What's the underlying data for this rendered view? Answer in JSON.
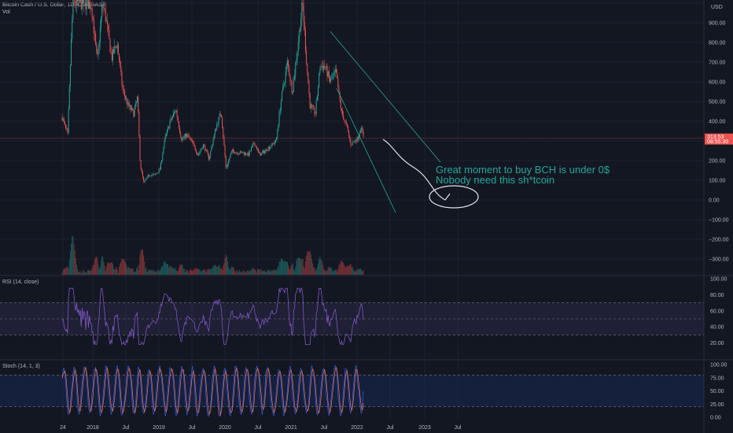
{
  "header": {
    "symbol": "Bitcoin Cash / U.S. Dollar, 1D, COINBASE",
    "volume_label": "Vol",
    "rsi_label": "RSI (14, close)",
    "stoch_label": "Stoch (14, 1, 3)",
    "usd_label": "USD"
  },
  "colors": {
    "background": "#131722",
    "up": "#26a69a",
    "down": "#ef5350",
    "rsi_line": "#7e57c2",
    "stoch_k": "#2962ff",
    "stoch_d": "#ff7043",
    "annotation": "#26a69a"
  },
  "chart_data": [
    {
      "type": "candlestick",
      "panel": "price",
      "x_ticks": [
        "24",
        "2018",
        "Jul",
        "2019",
        "Jul",
        "2020",
        "Jul",
        "2021",
        "Jul",
        "2022",
        "Jul",
        "2023",
        "Jul"
      ],
      "y_ticks": [
        "1000.00",
        "900.00",
        "800.00",
        "700.00",
        "600.00",
        "500.00",
        "400.00",
        "300.00",
        "200.00",
        "100.00",
        "0.00",
        "−100.00",
        "−200.00",
        "−300.00"
      ],
      "ylim": [
        -340,
        1010
      ],
      "current_price": "313.53",
      "countdown": "08:55:30",
      "price_path": [
        [
          "2017-09-20",
          420
        ],
        [
          "2017-10-20",
          330
        ],
        [
          "2017-11-13",
          900
        ],
        [
          "2017-11-20",
          1000
        ],
        [
          "2017-12-20",
          1000
        ],
        [
          "2018-01-20",
          1000
        ],
        [
          "2018-02-10",
          1000
        ],
        [
          "2018-03-01",
          990
        ],
        [
          "2018-04-01",
          700
        ],
        [
          "2018-05-01",
          1000
        ],
        [
          "2018-05-20",
          920
        ],
        [
          "2018-06-20",
          720
        ],
        [
          "2018-07-20",
          800
        ],
        [
          "2018-08-20",
          560
        ],
        [
          "2018-09-20",
          480
        ],
        [
          "2018-10-20",
          440
        ],
        [
          "2018-11-10",
          520
        ],
        [
          "2018-11-25",
          180
        ],
        [
          "2018-12-15",
          85
        ],
        [
          "2019-01-15",
          130
        ],
        [
          "2019-02-15",
          125
        ],
        [
          "2019-03-15",
          160
        ],
        [
          "2019-04-10",
          310
        ],
        [
          "2019-05-10",
          400
        ],
        [
          "2019-06-10",
          460
        ],
        [
          "2019-07-10",
          310
        ],
        [
          "2019-08-10",
          330
        ],
        [
          "2019-09-10",
          290
        ],
        [
          "2019-10-10",
          230
        ],
        [
          "2019-11-10",
          280
        ],
        [
          "2019-12-10",
          210
        ],
        [
          "2020-01-15",
          360
        ],
        [
          "2020-02-15",
          450
        ],
        [
          "2020-03-13",
          160
        ],
        [
          "2020-04-15",
          250
        ],
        [
          "2020-05-15",
          240
        ],
        [
          "2020-06-15",
          240
        ],
        [
          "2020-07-15",
          230
        ],
        [
          "2020-08-15",
          290
        ],
        [
          "2020-09-15",
          230
        ],
        [
          "2020-10-15",
          250
        ],
        [
          "2020-11-15",
          275
        ],
        [
          "2020-12-15",
          300
        ],
        [
          "2021-01-10",
          500
        ],
        [
          "2021-02-15",
          700
        ],
        [
          "2021-03-15",
          550
        ],
        [
          "2021-04-15",
          800
        ],
        [
          "2021-05-10",
          1000
        ],
        [
          "2021-06-01",
          700
        ],
        [
          "2021-06-20",
          480
        ],
        [
          "2021-07-20",
          440
        ],
        [
          "2021-08-15",
          680
        ],
        [
          "2021-09-10",
          680
        ],
        [
          "2021-10-10",
          600
        ],
        [
          "2021-11-10",
          650
        ],
        [
          "2021-12-10",
          450
        ],
        [
          "2022-01-10",
          370
        ],
        [
          "2022-02-01",
          280
        ],
        [
          "2022-02-20",
          300
        ],
        [
          "2022-03-10",
          310
        ],
        [
          "2022-03-28",
          370
        ],
        [
          "2022-04-15",
          313
        ]
      ]
    },
    {
      "type": "line",
      "panel": "rsi",
      "y_ticks": [
        "100.00",
        "80.00",
        "60.00",
        "40.00",
        "20.00"
      ],
      "ylim": [
        0,
        100
      ],
      "bands": [
        30,
        50,
        70
      ]
    },
    {
      "type": "line",
      "panel": "stoch",
      "y_ticks": [
        "100.00",
        "75.00",
        "50.00",
        "25.00",
        "0.00"
      ],
      "ylim": [
        0,
        100
      ],
      "bands": [
        20,
        80
      ]
    }
  ],
  "annotation": {
    "line1": "Great moment to buy BCH is under 0$",
    "line2": "Nobody need this sh*tcoin"
  }
}
